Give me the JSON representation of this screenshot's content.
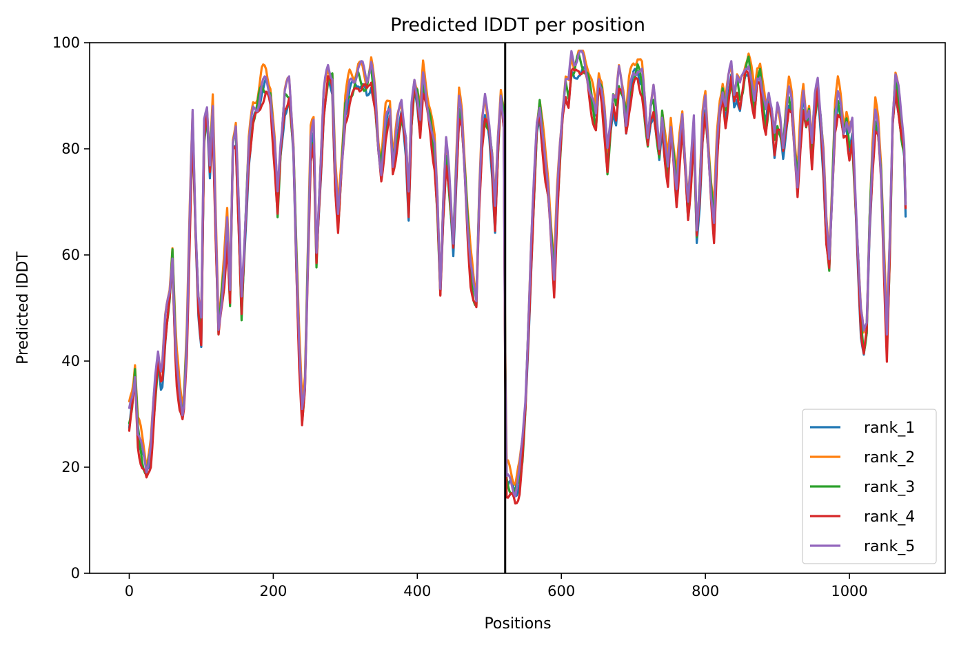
{
  "chart_data": {
    "type": "line",
    "title": "Predicted lDDT per position",
    "xlabel": "Positions",
    "ylabel": "Predicted lDDT",
    "xlim": [
      -55,
      1133
    ],
    "ylim": [
      0,
      100
    ],
    "xticks": [
      0,
      200,
      400,
      600,
      800,
      1000
    ],
    "yticks": [
      0,
      20,
      40,
      60,
      80,
      100
    ],
    "xtick_labels": [
      "0",
      "200",
      "400",
      "600",
      "800",
      "1000"
    ],
    "ytick_labels": [
      "0",
      "20",
      "40",
      "60",
      "80",
      "100"
    ],
    "grid": false,
    "legend_position": "bottom-right",
    "chain_break_x": 522,
    "series": [
      {
        "name": "rank_1",
        "color": "#1f77b4",
        "offset": -1.6
      },
      {
        "name": "rank_2",
        "color": "#ff7f0e",
        "offset": 1.6
      },
      {
        "name": "rank_3",
        "color": "#2ca02c",
        "offset": -0.8
      },
      {
        "name": "rank_4",
        "color": "#d62728",
        "offset": -2.2
      },
      {
        "name": "rank_5",
        "color": "#9467bd",
        "offset": 0.6
      }
    ],
    "profile": [
      [
        0,
        29
      ],
      [
        5,
        33
      ],
      [
        8,
        38
      ],
      [
        12,
        27
      ],
      [
        18,
        23
      ],
      [
        24,
        20
      ],
      [
        30,
        24
      ],
      [
        36,
        35
      ],
      [
        40,
        41
      ],
      [
        45,
        37
      ],
      [
        50,
        46
      ],
      [
        56,
        52
      ],
      [
        60,
        60
      ],
      [
        65,
        40
      ],
      [
        70,
        33
      ],
      [
        75,
        30
      ],
      [
        80,
        45
      ],
      [
        85,
        72
      ],
      [
        88,
        86
      ],
      [
        92,
        66
      ],
      [
        96,
        52
      ],
      [
        100,
        46
      ],
      [
        104,
        83
      ],
      [
        108,
        87
      ],
      [
        112,
        77
      ],
      [
        116,
        87
      ],
      [
        120,
        65
      ],
      [
        124,
        46
      ],
      [
        128,
        52
      ],
      [
        132,
        58
      ],
      [
        136,
        66
      ],
      [
        140,
        53
      ],
      [
        144,
        82
      ],
      [
        148,
        84
      ],
      [
        152,
        68
      ],
      [
        156,
        50
      ],
      [
        160,
        62
      ],
      [
        166,
        80
      ],
      [
        172,
        86
      ],
      [
        178,
        88
      ],
      [
        184,
        92
      ],
      [
        190,
        93
      ],
      [
        196,
        91
      ],
      [
        202,
        80
      ],
      [
        206,
        70
      ],
      [
        210,
        80
      ],
      [
        216,
        90
      ],
      [
        222,
        91
      ],
      [
        228,
        80
      ],
      [
        232,
        60
      ],
      [
        236,
        42
      ],
      [
        240,
        30
      ],
      [
        244,
        36
      ],
      [
        248,
        60
      ],
      [
        252,
        82
      ],
      [
        256,
        84
      ],
      [
        260,
        60
      ],
      [
        264,
        72
      ],
      [
        270,
        89
      ],
      [
        276,
        94
      ],
      [
        282,
        93
      ],
      [
        286,
        75
      ],
      [
        290,
        66
      ],
      [
        294,
        75
      ],
      [
        300,
        88
      ],
      [
        306,
        92
      ],
      [
        312,
        93
      ],
      [
        318,
        95
      ],
      [
        324,
        94
      ],
      [
        330,
        92
      ],
      [
        336,
        95
      ],
      [
        342,
        88
      ],
      [
        346,
        80
      ],
      [
        350,
        76
      ],
      [
        356,
        85
      ],
      [
        362,
        88
      ],
      [
        366,
        78
      ],
      [
        372,
        84
      ],
      [
        378,
        88
      ],
      [
        384,
        82
      ],
      [
        388,
        70
      ],
      [
        392,
        86
      ],
      [
        396,
        92
      ],
      [
        400,
        90
      ],
      [
        404,
        85
      ],
      [
        408,
        93
      ],
      [
        412,
        90
      ],
      [
        418,
        86
      ],
      [
        424,
        80
      ],
      [
        428,
        70
      ],
      [
        432,
        54
      ],
      [
        436,
        70
      ],
      [
        440,
        80
      ],
      [
        444,
        74
      ],
      [
        450,
        62
      ],
      [
        454,
        76
      ],
      [
        458,
        88
      ],
      [
        462,
        85
      ],
      [
        466,
        76
      ],
      [
        470,
        66
      ],
      [
        474,
        58
      ],
      [
        478,
        54
      ],
      [
        482,
        52
      ],
      [
        486,
        72
      ],
      [
        490,
        84
      ],
      [
        494,
        88
      ],
      [
        500,
        84
      ],
      [
        504,
        78
      ],
      [
        508,
        67
      ],
      [
        512,
        80
      ],
      [
        516,
        90
      ],
      [
        520,
        86
      ],
      [
        523,
        18
      ],
      [
        530,
        17
      ],
      [
        536,
        16
      ],
      [
        542,
        19
      ],
      [
        546,
        24
      ],
      [
        550,
        32
      ],
      [
        554,
        46
      ],
      [
        558,
        60
      ],
      [
        562,
        72
      ],
      [
        566,
        84
      ],
      [
        570,
        88
      ],
      [
        574,
        82
      ],
      [
        578,
        76
      ],
      [
        582,
        72
      ],
      [
        586,
        64
      ],
      [
        590,
        56
      ],
      [
        594,
        70
      ],
      [
        598,
        80
      ],
      [
        602,
        88
      ],
      [
        606,
        93
      ],
      [
        610,
        91
      ],
      [
        614,
        96
      ],
      [
        618,
        95
      ],
      [
        624,
        97
      ],
      [
        630,
        96
      ],
      [
        636,
        94
      ],
      [
        642,
        90
      ],
      [
        648,
        86
      ],
      [
        652,
        94
      ],
      [
        656,
        92
      ],
      [
        660,
        86
      ],
      [
        664,
        78
      ],
      [
        668,
        84
      ],
      [
        672,
        90
      ],
      [
        676,
        88
      ],
      [
        680,
        93
      ],
      [
        686,
        90
      ],
      [
        690,
        85
      ],
      [
        694,
        90
      ],
      [
        700,
        94
      ],
      [
        706,
        96
      ],
      [
        712,
        94
      ],
      [
        716,
        88
      ],
      [
        720,
        82
      ],
      [
        724,
        88
      ],
      [
        728,
        90
      ],
      [
        732,
        84
      ],
      [
        736,
        79
      ],
      [
        740,
        86
      ],
      [
        744,
        80
      ],
      [
        748,
        75
      ],
      [
        752,
        84
      ],
      [
        756,
        79
      ],
      [
        760,
        73
      ],
      [
        764,
        80
      ],
      [
        768,
        86
      ],
      [
        772,
        78
      ],
      [
        776,
        70
      ],
      [
        780,
        76
      ],
      [
        784,
        84
      ],
      [
        788,
        64
      ],
      [
        792,
        72
      ],
      [
        796,
        84
      ],
      [
        800,
        88
      ],
      [
        804,
        80
      ],
      [
        808,
        72
      ],
      [
        812,
        66
      ],
      [
        816,
        80
      ],
      [
        820,
        88
      ],
      [
        824,
        92
      ],
      [
        828,
        88
      ],
      [
        832,
        92
      ],
      [
        836,
        95
      ],
      [
        840,
        90
      ],
      [
        844,
        93
      ],
      [
        848,
        90
      ],
      [
        852,
        92
      ],
      [
        856,
        95
      ],
      [
        860,
        96
      ],
      [
        864,
        92
      ],
      [
        868,
        88
      ],
      [
        872,
        94
      ],
      [
        876,
        95
      ],
      [
        880,
        90
      ],
      [
        884,
        86
      ],
      [
        888,
        90
      ],
      [
        892,
        88
      ],
      [
        896,
        82
      ],
      [
        900,
        86
      ],
      [
        904,
        84
      ],
      [
        908,
        80
      ],
      [
        912,
        86
      ],
      [
        916,
        90
      ],
      [
        920,
        88
      ],
      [
        924,
        80
      ],
      [
        928,
        74
      ],
      [
        932,
        84
      ],
      [
        936,
        90
      ],
      [
        940,
        86
      ],
      [
        944,
        88
      ],
      [
        948,
        80
      ],
      [
        952,
        88
      ],
      [
        956,
        92
      ],
      [
        960,
        86
      ],
      [
        964,
        78
      ],
      [
        968,
        64
      ],
      [
        972,
        58
      ],
      [
        976,
        72
      ],
      [
        980,
        86
      ],
      [
        984,
        90
      ],
      [
        988,
        88
      ],
      [
        992,
        84
      ],
      [
        996,
        86
      ],
      [
        1000,
        82
      ],
      [
        1004,
        84
      ],
      [
        1008,
        72
      ],
      [
        1012,
        60
      ],
      [
        1016,
        48
      ],
      [
        1020,
        43
      ],
      [
        1024,
        46
      ],
      [
        1028,
        66
      ],
      [
        1032,
        78
      ],
      [
        1036,
        86
      ],
      [
        1040,
        84
      ],
      [
        1044,
        76
      ],
      [
        1048,
        60
      ],
      [
        1052,
        44
      ],
      [
        1056,
        62
      ],
      [
        1060,
        86
      ],
      [
        1064,
        94
      ],
      [
        1068,
        90
      ],
      [
        1072,
        84
      ],
      [
        1076,
        80
      ],
      [
        1079,
        64
      ]
    ]
  }
}
